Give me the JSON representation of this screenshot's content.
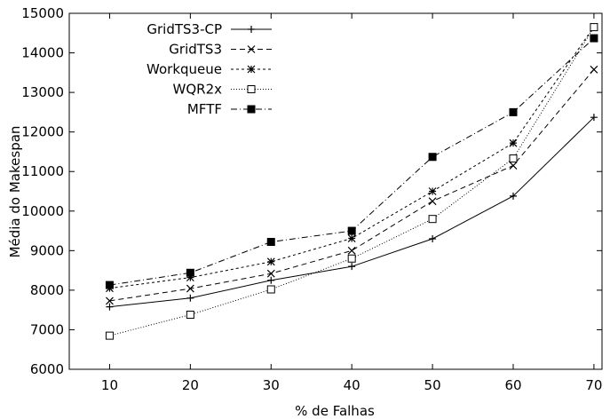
{
  "chart_data": {
    "type": "line",
    "title": "",
    "xlabel": "% de Falhas",
    "ylabel": "Média do Makespan",
    "x": [
      10,
      20,
      30,
      40,
      50,
      60,
      70
    ],
    "x_ticks": [
      "10",
      "20",
      "30",
      "40",
      "50",
      "60",
      "70"
    ],
    "y_ticks": [
      "6000",
      "7000",
      "8000",
      "9000",
      "10000",
      "11000",
      "12000",
      "13000",
      "14000",
      "15000"
    ],
    "xlim": [
      5,
      71
    ],
    "ylim": [
      6000,
      15000
    ],
    "grid": false,
    "legend_position": "top-left",
    "series": [
      {
        "name": "GridTS3-CP",
        "marker": "plus",
        "dash": "solid",
        "values": [
          7580,
          7800,
          8250,
          8600,
          9300,
          10380,
          12370
        ]
      },
      {
        "name": "GridTS3",
        "marker": "cross",
        "dash": "dashed",
        "values": [
          7730,
          8040,
          8420,
          9000,
          10250,
          11150,
          13580
        ]
      },
      {
        "name": "Workqueue",
        "marker": "star",
        "dash": "short-dashed",
        "values": [
          8050,
          8320,
          8720,
          9310,
          10500,
          11720,
          14660
        ]
      },
      {
        "name": "WQR2x",
        "marker": "open-square",
        "dash": "dotted",
        "values": [
          6850,
          7380,
          8020,
          8800,
          9800,
          11330,
          14650
        ]
      },
      {
        "name": "MFTF",
        "marker": "filled-square",
        "dash": "dash-dot",
        "values": [
          8130,
          8440,
          9220,
          9500,
          11370,
          12500,
          14370
        ]
      }
    ]
  }
}
